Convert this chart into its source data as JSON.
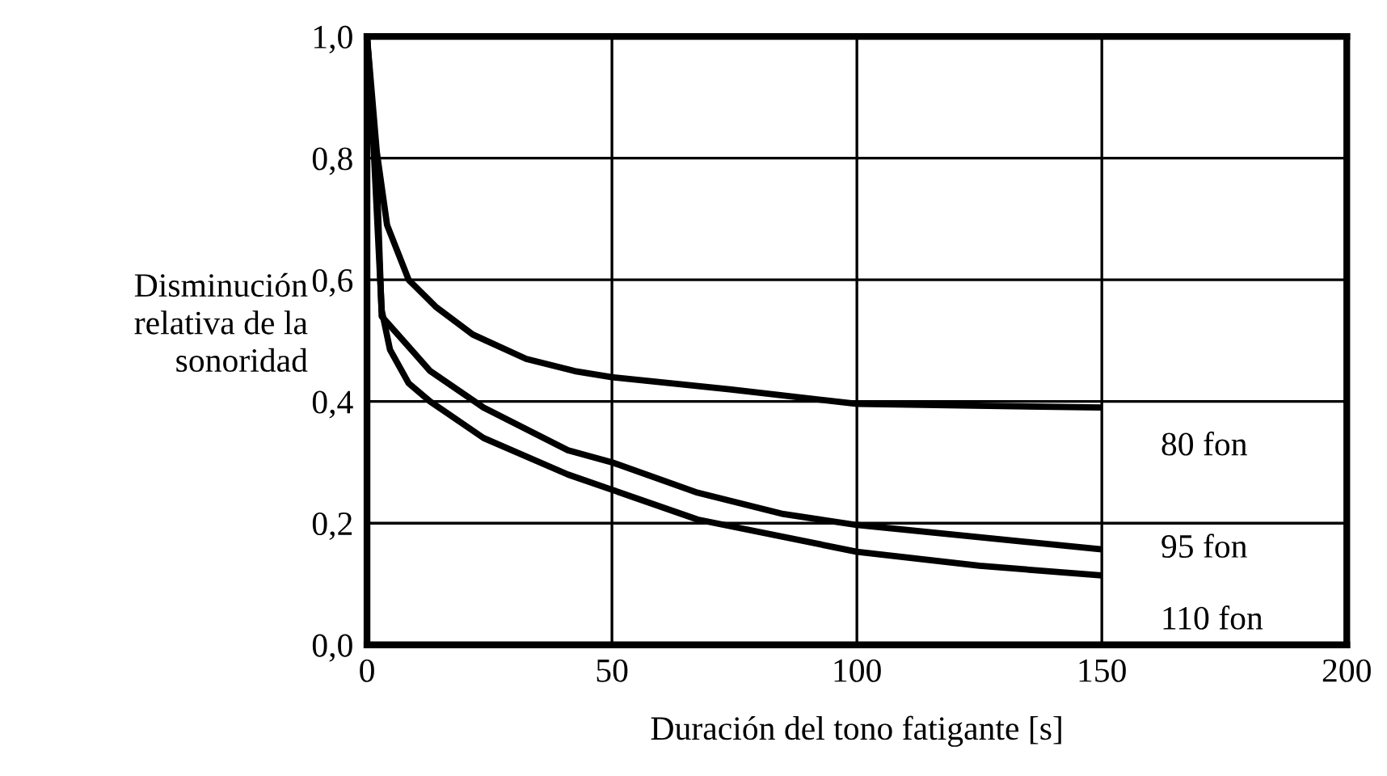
{
  "chart_data": {
    "type": "line",
    "xlabel": "Duración del tono fatigante [s]",
    "ylabel": "Disminución\nrelativa de la\nsonoridad",
    "xlim": [
      0,
      200
    ],
    "xticks": [
      0,
      50,
      100,
      150,
      200
    ],
    "ylim": [
      0,
      1.0
    ],
    "yticks": [
      {
        "value": 0,
        "label": "0,0"
      },
      {
        "value": 0.2,
        "label": "0,2"
      },
      {
        "value": 0.4,
        "label": "0,4"
      },
      {
        "value": 0.6,
        "label": "0,6"
      },
      {
        "value": 0.8,
        "label": "0,8"
      },
      {
        "value": 1.0,
        "label": "1,0"
      }
    ],
    "grid": true,
    "marker": "none",
    "line_style": "solid",
    "series": [
      {
        "name": "80 fon",
        "color": "#000000",
        "x": [
          0,
          2,
          4.1,
          8.5,
          14,
          21.6,
          32.5,
          42.4,
          50,
          74,
          100,
          150
        ],
        "values": [
          1.0,
          0.81,
          0.69,
          0.6,
          0.556,
          0.51,
          0.47,
          0.45,
          0.44,
          0.42,
          0.396,
          0.39
        ]
      },
      {
        "name": "95 fon",
        "color": "#000000",
        "x": [
          0,
          2,
          3,
          6.3,
          12.9,
          23.8,
          41,
          50,
          67.5,
          85,
          100,
          150
        ],
        "values": [
          1.0,
          0.77,
          0.54,
          0.51,
          0.45,
          0.39,
          0.32,
          0.3,
          0.25,
          0.215,
          0.197,
          0.157
        ]
      },
      {
        "name": "110 fon",
        "color": "#000000",
        "x": [
          0,
          1.4,
          3,
          4.7,
          8.5,
          12.9,
          23.8,
          41,
          50,
          67.5,
          100,
          125,
          150
        ],
        "values": [
          1.0,
          0.81,
          0.55,
          0.485,
          0.43,
          0.4,
          0.34,
          0.28,
          0.255,
          0.206,
          0.153,
          0.13,
          0.114
        ]
      }
    ]
  }
}
